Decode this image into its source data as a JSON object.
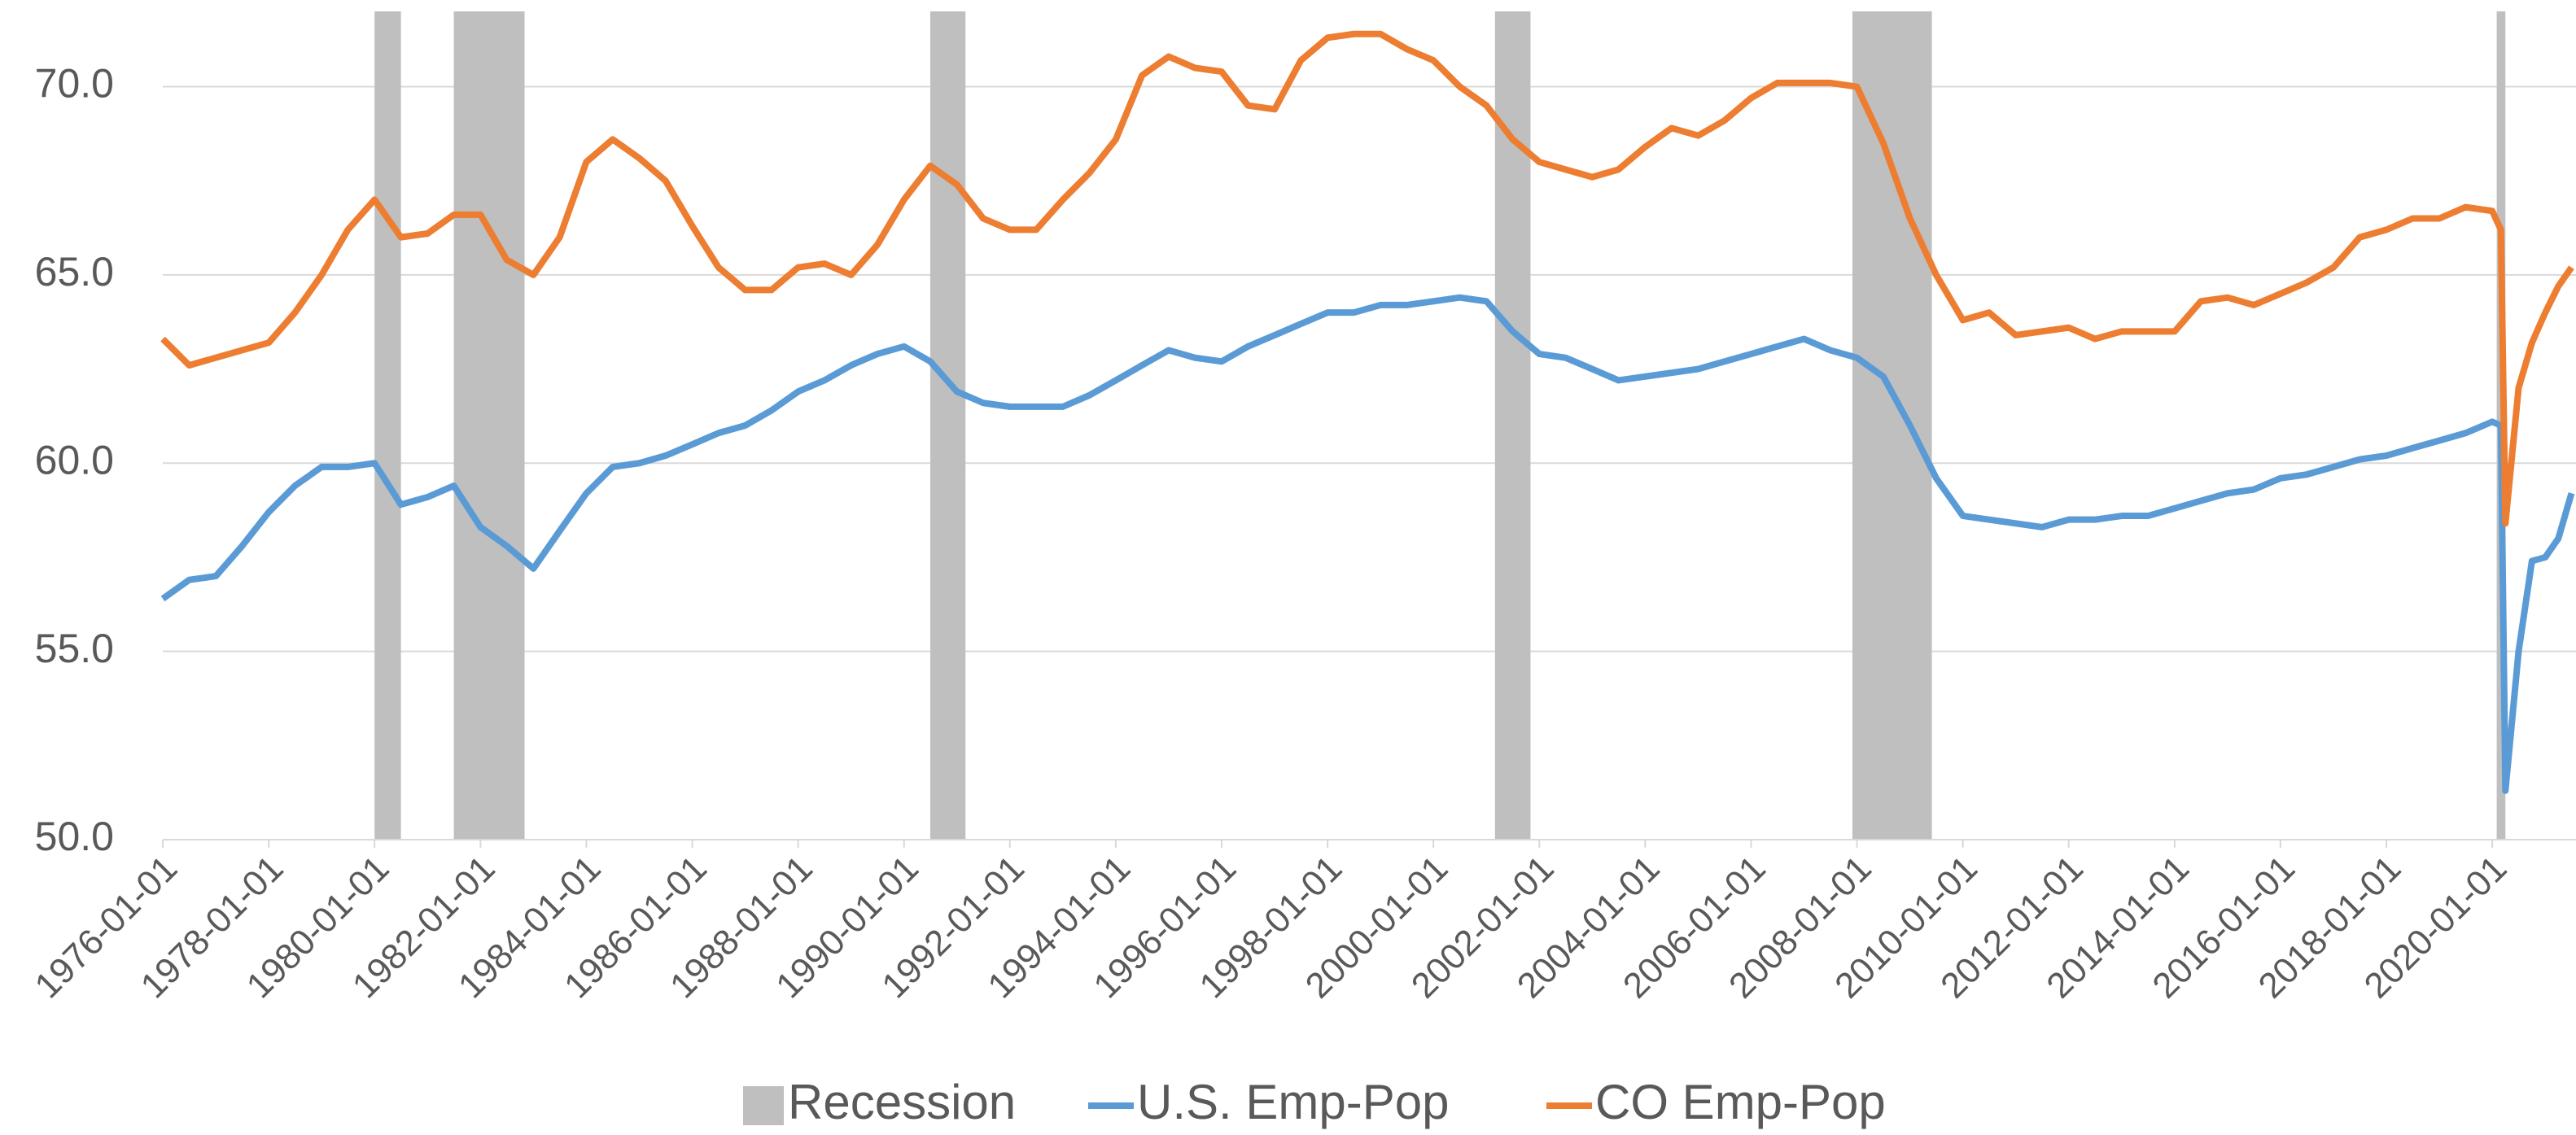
{
  "chart_data": {
    "type": "line",
    "x": [
      "1976-01-01",
      "1976-07-01",
      "1977-01-01",
      "1977-07-01",
      "1978-01-01",
      "1978-07-01",
      "1979-01-01",
      "1979-07-01",
      "1980-01-01",
      "1980-07-01",
      "1981-01-01",
      "1981-07-01",
      "1982-01-01",
      "1982-07-01",
      "1983-01-01",
      "1983-07-01",
      "1984-01-01",
      "1984-07-01",
      "1985-01-01",
      "1985-07-01",
      "1986-01-01",
      "1986-07-01",
      "1987-01-01",
      "1987-07-01",
      "1988-01-01",
      "1988-07-01",
      "1989-01-01",
      "1989-07-01",
      "1990-01-01",
      "1990-07-01",
      "1991-01-01",
      "1991-07-01",
      "1992-01-01",
      "1992-07-01",
      "1993-01-01",
      "1993-07-01",
      "1994-01-01",
      "1994-07-01",
      "1995-01-01",
      "1995-07-01",
      "1996-01-01",
      "1996-07-01",
      "1997-01-01",
      "1997-07-01",
      "1998-01-01",
      "1998-07-01",
      "1999-01-01",
      "1999-07-01",
      "2000-01-01",
      "2000-07-01",
      "2001-01-01",
      "2001-07-01",
      "2002-01-01",
      "2002-07-01",
      "2003-01-01",
      "2003-07-01",
      "2004-01-01",
      "2004-07-01",
      "2005-01-01",
      "2005-07-01",
      "2006-01-01",
      "2006-07-01",
      "2007-01-01",
      "2007-07-01",
      "2008-01-01",
      "2008-07-01",
      "2009-01-01",
      "2009-07-01",
      "2010-01-01",
      "2010-07-01",
      "2011-01-01",
      "2011-07-01",
      "2012-01-01",
      "2012-07-01",
      "2013-01-01",
      "2013-07-01",
      "2014-01-01",
      "2014-07-01",
      "2015-01-01",
      "2015-07-01",
      "2016-01-01",
      "2016-07-01",
      "2017-01-01",
      "2017-07-01",
      "2018-01-01",
      "2018-07-01",
      "2019-01-01",
      "2019-07-01",
      "2020-01-01",
      "2020-03-01",
      "2020-04-01",
      "2020-07-01",
      "2020-10-01",
      "2021-01-01",
      "2021-04-01",
      "2021-07-01"
    ],
    "series": [
      {
        "name": "U.S. Emp-Pop",
        "color": "#5b9bd5",
        "values": [
          56.4,
          56.9,
          57.0,
          57.8,
          58.7,
          59.4,
          59.9,
          59.9,
          60.0,
          58.9,
          59.1,
          59.4,
          58.3,
          57.8,
          57.2,
          58.2,
          59.2,
          59.9,
          60.0,
          60.2,
          60.5,
          60.8,
          61.0,
          61.4,
          61.9,
          62.2,
          62.6,
          62.9,
          63.1,
          62.7,
          61.9,
          61.6,
          61.5,
          61.5,
          61.5,
          61.8,
          62.2,
          62.6,
          63.0,
          62.8,
          62.7,
          63.1,
          63.4,
          63.7,
          64.0,
          64.0,
          64.2,
          64.2,
          64.3,
          64.4,
          64.3,
          63.5,
          62.9,
          62.8,
          62.5,
          62.2,
          62.3,
          62.4,
          62.5,
          62.7,
          62.9,
          63.1,
          63.3,
          63.0,
          62.8,
          62.3,
          61.0,
          59.6,
          58.6,
          58.5,
          58.4,
          58.3,
          58.5,
          58.5,
          58.6,
          58.6,
          58.8,
          59.0,
          59.2,
          59.3,
          59.6,
          59.7,
          59.9,
          60.1,
          60.2,
          60.4,
          60.6,
          60.8,
          61.1,
          61.0,
          51.3,
          55.0,
          57.4,
          57.5,
          58.0,
          59.2
        ]
      },
      {
        "name": "CO Emp-Pop",
        "color": "#ed7d31",
        "values": [
          63.3,
          62.6,
          62.8,
          63.0,
          63.2,
          64.0,
          65.0,
          66.2,
          67.0,
          66.0,
          66.1,
          66.6,
          66.6,
          65.4,
          65.0,
          66.0,
          68.0,
          68.6,
          68.1,
          67.5,
          66.3,
          65.2,
          64.6,
          64.6,
          65.2,
          65.3,
          65.0,
          65.8,
          67.0,
          67.9,
          67.4,
          66.5,
          66.2,
          66.2,
          67.0,
          67.7,
          68.6,
          70.3,
          70.8,
          70.5,
          70.4,
          69.5,
          69.4,
          70.7,
          71.3,
          71.4,
          71.4,
          71.0,
          70.7,
          70.0,
          69.5,
          68.6,
          68.0,
          67.8,
          67.6,
          67.8,
          68.4,
          68.9,
          68.7,
          69.1,
          69.7,
          70.1,
          70.1,
          70.1,
          70.0,
          68.5,
          66.5,
          65.0,
          63.8,
          64.0,
          63.4,
          63.5,
          63.6,
          63.3,
          63.5,
          63.5,
          63.5,
          64.3,
          64.4,
          64.2,
          64.5,
          64.8,
          65.2,
          66.0,
          66.2,
          66.5,
          66.5,
          66.8,
          66.7,
          66.2,
          58.4,
          62.0,
          63.2,
          64.0,
          64.7,
          65.2
        ]
      }
    ],
    "recession": {
      "name": "Recession",
      "color": "#bfbfbf",
      "periods": [
        [
          "1980-01-01",
          "1980-07-01"
        ],
        [
          "1981-07-01",
          "1982-11-01"
        ],
        [
          "1990-07-01",
          "1991-03-01"
        ],
        [
          "2001-03-01",
          "2001-11-01"
        ],
        [
          "2007-12-01",
          "2009-06-01"
        ],
        [
          "2020-02-01",
          "2020-04-01"
        ]
      ]
    },
    "xlim": [
      "1976-01-01",
      "2021-08-01"
    ],
    "xticks": [
      "1976-01-01",
      "1978-01-01",
      "1980-01-01",
      "1982-01-01",
      "1984-01-01",
      "1986-01-01",
      "1988-01-01",
      "1990-01-01",
      "1992-01-01",
      "1994-01-01",
      "1996-01-01",
      "1998-01-01",
      "2000-01-01",
      "2002-01-01",
      "2004-01-01",
      "2006-01-01",
      "2008-01-01",
      "2010-01-01",
      "2012-01-01",
      "2014-01-01",
      "2016-01-01",
      "2018-01-01",
      "2020-01-01"
    ],
    "ylim": [
      50,
      72
    ],
    "yticks": [
      {
        "value": 50,
        "label": "50.0"
      },
      {
        "value": 55,
        "label": "55.0"
      },
      {
        "value": 60,
        "label": "60.0"
      },
      {
        "value": 65,
        "label": "65.0"
      },
      {
        "value": 70,
        "label": "70.0"
      }
    ],
    "grid": true
  }
}
